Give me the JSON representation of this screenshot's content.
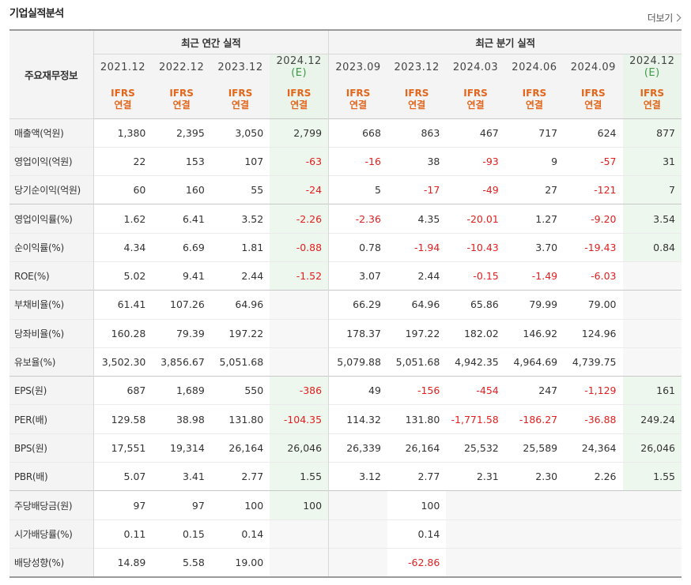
{
  "header": {
    "title": "기업실적분석",
    "more_label": "더보기"
  },
  "table": {
    "corner_label": "주요재무정보",
    "group_annual": "최근 연간 실적",
    "group_quarterly": "최근 분기 실적",
    "periods": [
      "2021.12",
      "2022.12",
      "2023.12",
      "2024.12",
      "2023.09",
      "2023.12",
      "2024.03",
      "2024.06",
      "2024.09",
      "2024.12"
    ],
    "estimate_mark": "(E)",
    "estimate_flags": [
      false,
      false,
      false,
      true,
      false,
      false,
      false,
      false,
      false,
      true
    ],
    "basis_top": "IFRS",
    "basis_bottom": "연결",
    "rows": [
      {
        "label": "매출액(억원)",
        "values": [
          "1,380",
          "2,395",
          "3,050",
          "2,799",
          "668",
          "863",
          "467",
          "717",
          "624",
          "877"
        ]
      },
      {
        "label": "영업이익(억원)",
        "values": [
          "22",
          "153",
          "107",
          "-63",
          "-16",
          "38",
          "-93",
          "9",
          "-57",
          "31"
        ]
      },
      {
        "label": "당기순이익(억원)",
        "values": [
          "60",
          "160",
          "55",
          "-24",
          "5",
          "-17",
          "-49",
          "27",
          "-121",
          "7"
        ]
      },
      {
        "label": "영업이익률(%)",
        "values": [
          "1.62",
          "6.41",
          "3.52",
          "-2.26",
          "-2.36",
          "4.35",
          "-20.01",
          "1.27",
          "-9.20",
          "3.54"
        ]
      },
      {
        "label": "순이익률(%)",
        "values": [
          "4.34",
          "6.69",
          "1.81",
          "-0.88",
          "0.78",
          "-1.94",
          "-10.43",
          "3.70",
          "-19.43",
          "0.84"
        ]
      },
      {
        "label": "ROE(%)",
        "values": [
          "5.02",
          "9.41",
          "2.44",
          "-1.52",
          "3.07",
          "2.44",
          "-0.15",
          "-1.49",
          "-6.03",
          ""
        ]
      },
      {
        "label": "부채비율(%)",
        "values": [
          "61.41",
          "107.26",
          "64.96",
          "",
          "66.29",
          "64.96",
          "65.86",
          "79.99",
          "79.00",
          ""
        ]
      },
      {
        "label": "당좌비율(%)",
        "values": [
          "160.28",
          "79.39",
          "197.22",
          "",
          "178.37",
          "197.22",
          "182.02",
          "146.92",
          "124.96",
          ""
        ]
      },
      {
        "label": "유보율(%)",
        "values": [
          "3,502.30",
          "3,856.67",
          "5,051.68",
          "",
          "5,079.88",
          "5,051.68",
          "4,942.35",
          "4,964.69",
          "4,739.75",
          ""
        ]
      },
      {
        "label": "EPS(원)",
        "values": [
          "687",
          "1,689",
          "550",
          "-386",
          "49",
          "-156",
          "-454",
          "247",
          "-1,129",
          "161"
        ]
      },
      {
        "label": "PER(배)",
        "values": [
          "129.58",
          "38.98",
          "131.80",
          "-104.35",
          "114.32",
          "131.80",
          "-1,771.58",
          "-186.27",
          "-36.88",
          "249.24"
        ]
      },
      {
        "label": "BPS(원)",
        "values": [
          "17,551",
          "19,314",
          "26,164",
          "26,046",
          "26,339",
          "26,164",
          "25,532",
          "25,589",
          "24,364",
          "26,046"
        ]
      },
      {
        "label": "PBR(배)",
        "values": [
          "5.07",
          "3.41",
          "2.77",
          "1.55",
          "3.12",
          "2.77",
          "2.31",
          "2.30",
          "2.26",
          "1.55"
        ]
      },
      {
        "label": "주당배당금(원)",
        "values": [
          "97",
          "97",
          "100",
          "100",
          "",
          "100",
          "",
          "",
          "",
          ""
        ]
      },
      {
        "label": "시가배당률(%)",
        "values": [
          "0.11",
          "0.15",
          "0.14",
          "",
          "",
          "0.14",
          "",
          "",
          "",
          ""
        ]
      },
      {
        "label": "배당성향(%)",
        "values": [
          "14.89",
          "5.58",
          "19.00",
          "",
          "",
          "-62.86",
          "",
          "",
          "",
          ""
        ]
      }
    ],
    "group_end_rows": [
      2,
      5,
      8,
      12
    ],
    "negative_color": "#e02020",
    "estimate_color": "#3e9a46",
    "basis_color": "#e2661b"
  }
}
